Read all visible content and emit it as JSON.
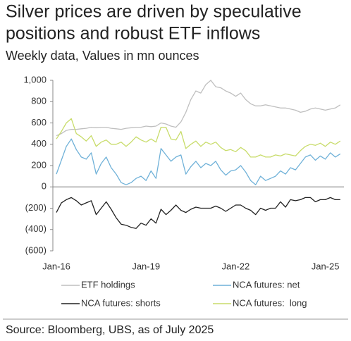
{
  "chart_data": {
    "type": "line",
    "title": [
      "Silver prices are driven by speculative",
      "positions and robust ETF inflows"
    ],
    "subtitle": "Weekly data, Values in mn ounces",
    "source": "Source: Bloomberg, UBS, as of July 2025",
    "x": [
      "Jan-16",
      "Mar-16",
      "May-16",
      "Jul-16",
      "Sep-16",
      "Nov-16",
      "Jan-17",
      "Mar-17",
      "May-17",
      "Jul-17",
      "Sep-17",
      "Nov-17",
      "Jan-18",
      "Mar-18",
      "May-18",
      "Jul-18",
      "Sep-18",
      "Nov-18",
      "Jan-19",
      "Mar-19",
      "May-19",
      "Jul-19",
      "Sep-19",
      "Nov-19",
      "Jan-20",
      "Mar-20",
      "May-20",
      "Jul-20",
      "Sep-20",
      "Nov-20",
      "Jan-21",
      "Mar-21",
      "May-21",
      "Jul-21",
      "Sep-21",
      "Nov-21",
      "Jan-22",
      "Mar-22",
      "May-22",
      "Jul-22",
      "Sep-22",
      "Nov-22",
      "Jan-23",
      "Mar-23",
      "May-23",
      "Jul-23",
      "Sep-23",
      "Nov-23",
      "Jan-24",
      "Mar-24",
      "May-24",
      "Jul-24",
      "Sep-24",
      "Nov-24",
      "Jan-25",
      "Mar-25",
      "May-25",
      "Jul-25"
    ],
    "xticks": [
      "Jan-16",
      "Jan-19",
      "Jan-22",
      "Jan-25"
    ],
    "ylim": [
      -600,
      1000
    ],
    "yticks": [
      {
        "value": -600,
        "label": "(600)"
      },
      {
        "value": -400,
        "label": "(400)"
      },
      {
        "value": -200,
        "label": "(200)"
      },
      0,
      200,
      400,
      600,
      800,
      {
        "value": 1000,
        "label": "1,000"
      }
    ],
    "legend": "bottom",
    "series": [
      {
        "name": "ETF holdings",
        "color": "#bfbfbf",
        "values": [
          480,
          500,
          530,
          540,
          540,
          545,
          550,
          560,
          555,
          560,
          560,
          550,
          545,
          540,
          550,
          555,
          560,
          560,
          570,
          565,
          570,
          600,
          590,
          570,
          560,
          610,
          700,
          820,
          900,
          880,
          960,
          1000,
          940,
          930,
          900,
          880,
          850,
          880,
          820,
          780,
          760,
          760,
          770,
          760,
          750,
          740,
          740,
          730,
          720,
          700,
          710,
          730,
          740,
          730,
          720,
          730,
          740,
          770
        ]
      },
      {
        "name": "NCA futures: net",
        "color": "#6fb1d8",
        "values": [
          120,
          250,
          380,
          450,
          350,
          280,
          260,
          320,
          120,
          220,
          280,
          180,
          120,
          40,
          20,
          40,
          80,
          100,
          60,
          150,
          80,
          360,
          300,
          240,
          280,
          300,
          120,
          190,
          240,
          180,
          220,
          200,
          240,
          160,
          110,
          150,
          160,
          200,
          140,
          60,
          20,
          100,
          60,
          80,
          100,
          150,
          120,
          180,
          160,
          220,
          280,
          300,
          250,
          290,
          260,
          320,
          280,
          310
        ]
      },
      {
        "name": "NCA futures: shorts",
        "color": "#222222",
        "values": [
          -240,
          -150,
          -120,
          -100,
          -130,
          -170,
          -150,
          -130,
          -260,
          -200,
          -140,
          -210,
          -290,
          -350,
          -360,
          -380,
          -390,
          -340,
          -360,
          -300,
          -340,
          -210,
          -260,
          -220,
          -170,
          -220,
          -240,
          -210,
          -190,
          -200,
          -200,
          -200,
          -180,
          -200,
          -230,
          -200,
          -170,
          -170,
          -200,
          -220,
          -260,
          -200,
          -220,
          -200,
          -200,
          -140,
          -190,
          -120,
          -130,
          -120,
          -100,
          -100,
          -140,
          -120,
          -120,
          -100,
          -120,
          -120
        ]
      },
      {
        "name": "NCA futures:  long",
        "color": "#c8dc6a",
        "values": [
          450,
          520,
          600,
          640,
          500,
          470,
          430,
          480,
          380,
          420,
          440,
          400,
          400,
          420,
          380,
          420,
          470,
          440,
          420,
          450,
          420,
          560,
          560,
          450,
          440,
          520,
          360,
          400,
          430,
          380,
          420,
          400,
          420,
          370,
          340,
          350,
          330,
          370,
          340,
          280,
          280,
          300,
          280,
          280,
          300,
          290,
          310,
          300,
          290,
          340,
          380,
          400,
          390,
          410,
          380,
          420,
          400,
          430
        ]
      }
    ]
  }
}
